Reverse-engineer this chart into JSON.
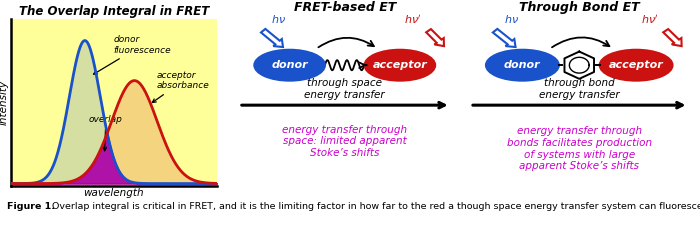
{
  "title_left": "The Overlap Integral in FRET",
  "title_mid": "FRET-based ET",
  "title_right": "Through Bond ET",
  "bg_color_left": "#FFFF99",
  "xlabel": "wavelength",
  "ylabel": "intensity",
  "label_donor": "donor\nfluorescence",
  "label_acceptor": "acceptor\nabsorbance",
  "label_overlap": "overlap",
  "mid_label1": "through space\nenergy transfer",
  "mid_label2": "energy transfer through\nspace: limited apparent\nStoke’s shifts",
  "right_label1": "through bond\nenergy transfer",
  "right_label2": "energy transfer through\nbonds facilitates production\nof systems with large\napparent Stoke’s shifts",
  "donor_color": "#1a52cc",
  "acceptor_color": "#cc1111",
  "overlap_color": "#aa00aa",
  "magenta_color": "#cc00cc",
  "caption_bold": "Figure 1.",
  "caption_rest": "  Overlap integral is critical in FRET, and it is the limiting factor in how far to the red a though space energy transfer system can fluoresce for a given donor.  Through bond energy transfer systems have no known limitation of this kind."
}
